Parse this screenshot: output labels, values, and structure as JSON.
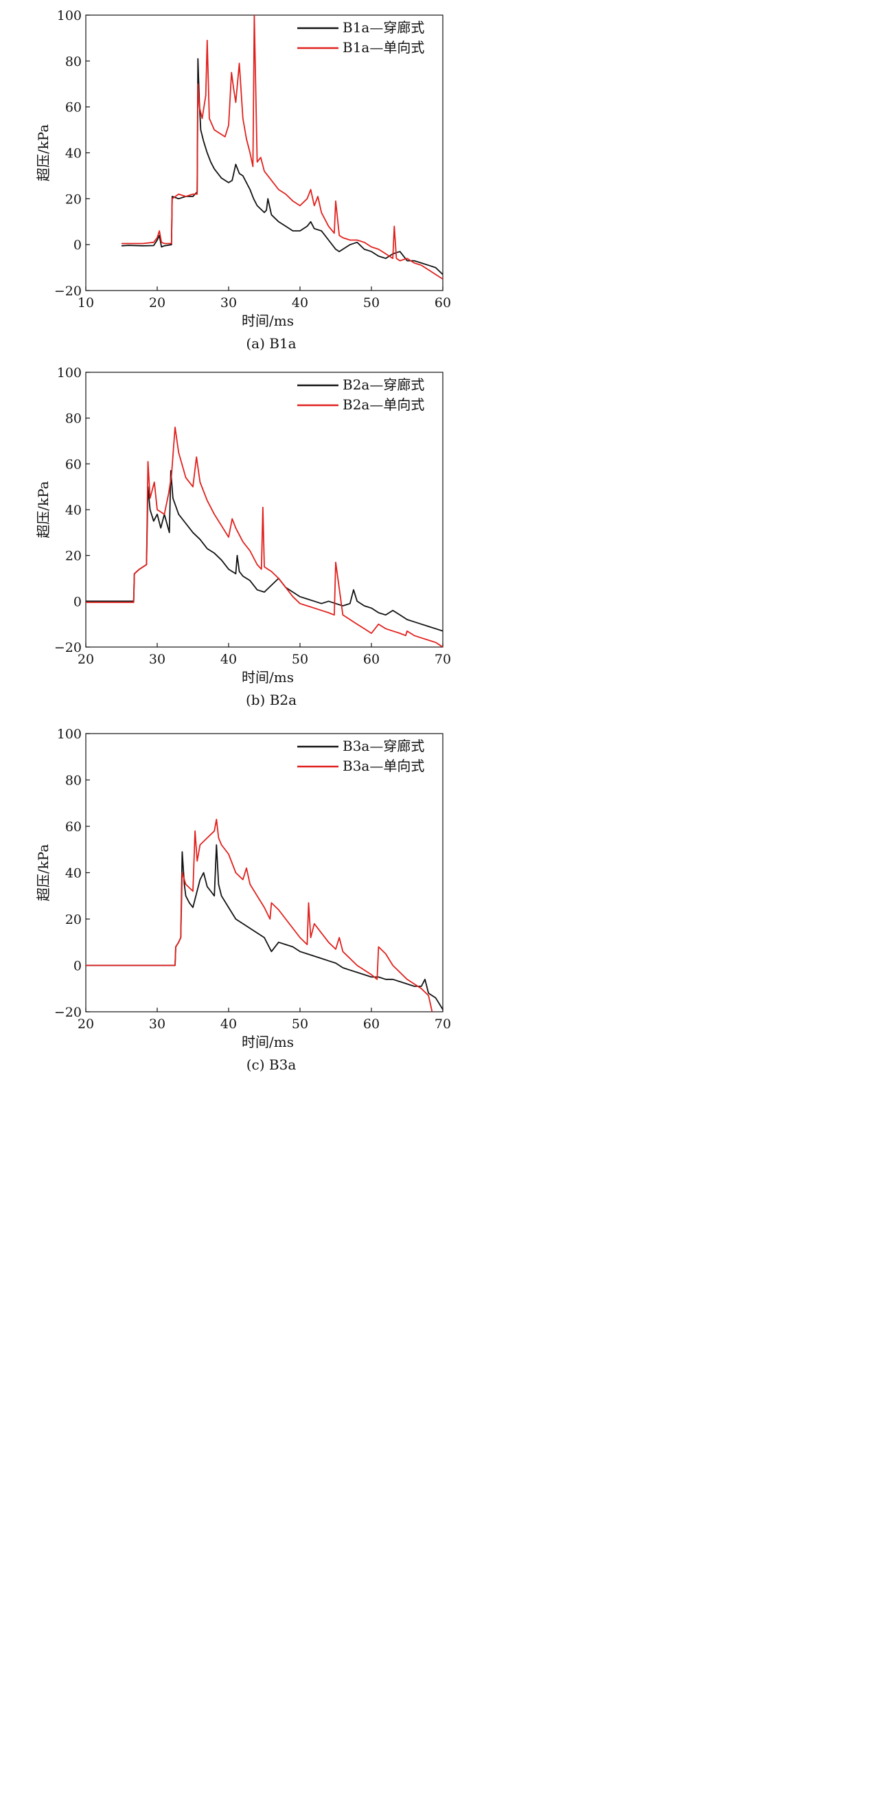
{
  "colors": {
    "series1": "#111111",
    "series2": "#e0201c"
  },
  "chart_data": [
    {
      "type": "line",
      "caption": "(a) B1a",
      "xlabel": "时间/ms",
      "ylabel": "超压/kPa",
      "xlim": [
        10,
        60
      ],
      "ylim": [
        -20,
        100
      ],
      "xticks": [
        "10",
        "20",
        "30",
        "40",
        "50",
        "60"
      ],
      "yticks": [
        "−20",
        "0",
        "20",
        "40",
        "60",
        "80",
        "100"
      ],
      "legend_position": "top-right",
      "series": [
        {
          "name": "B1a—穿廊式",
          "color": "#111111",
          "x": [
            15,
            16,
            18,
            19.5,
            20,
            20.3,
            20.6,
            21,
            22,
            22.1,
            23,
            24,
            25,
            25.6,
            25.7,
            25.9,
            26.1,
            26.5,
            27,
            27.5,
            28,
            29,
            30,
            30.5,
            31,
            31.5,
            32,
            33,
            33.5,
            34,
            35,
            35.3,
            35.5,
            36,
            37,
            38,
            39,
            40,
            41,
            41.5,
            42,
            43,
            44,
            45,
            45.5,
            46,
            47,
            48,
            49,
            50,
            51,
            52,
            53,
            54,
            55,
            56,
            57,
            58,
            59,
            60
          ],
          "y": [
            -0.5,
            -0.3,
            -0.5,
            -0.4,
            2,
            4,
            -1,
            -0.5,
            0,
            21,
            20,
            21,
            21,
            23,
            81,
            62,
            50,
            45,
            40,
            36,
            33,
            29,
            27,
            28,
            35,
            31,
            30,
            24,
            20,
            17,
            14,
            15,
            20,
            13,
            10,
            8,
            6,
            6,
            8,
            10,
            7,
            6,
            2,
            -2,
            -3,
            -2,
            0,
            1,
            -2,
            -3,
            -5,
            -6,
            -4,
            -3,
            -7,
            -7,
            -8,
            -9,
            -10,
            -13
          ]
        },
        {
          "name": "B1a—单向式",
          "color": "#e0201c",
          "x": [
            15,
            16,
            18,
            19.5,
            20,
            20.3,
            20.6,
            21,
            22,
            22.1,
            23,
            24,
            25,
            25.6,
            25.7,
            25.9,
            26.3,
            26.8,
            27,
            27.3,
            28,
            29,
            29.5,
            30,
            30.4,
            30.7,
            31,
            31.5,
            32,
            32.5,
            33,
            33.4,
            33.6,
            34,
            34.5,
            35,
            36,
            37,
            38,
            39,
            40,
            41,
            41.5,
            42,
            42.5,
            43,
            44,
            44.8,
            45,
            45.5,
            46,
            47,
            48,
            49,
            50,
            51,
            52,
            53,
            53.2,
            53.5,
            54,
            55,
            56,
            57,
            58,
            59,
            60
          ],
          "y": [
            0.5,
            0.5,
            0.5,
            1,
            3,
            6,
            1,
            0.5,
            0.5,
            20,
            22,
            21,
            22,
            22,
            70,
            60,
            55,
            65,
            89,
            55,
            50,
            48,
            47,
            52,
            75,
            68,
            62,
            79,
            55,
            46,
            40,
            34,
            100,
            36,
            38,
            32,
            28,
            24,
            22,
            19,
            17,
            20,
            24,
            17,
            21,
            14,
            8,
            5,
            19,
            4,
            3,
            2,
            2,
            1,
            -1,
            -2,
            -4,
            -6,
            8,
            -6,
            -7,
            -6,
            -8,
            -9,
            -11,
            -13,
            -15
          ]
        }
      ]
    },
    {
      "type": "line",
      "caption": "(b) B2a",
      "xlabel": "时间/ms",
      "ylabel": "超压/kPa",
      "xlim": [
        20,
        70
      ],
      "ylim": [
        -20,
        100
      ],
      "xticks": [
        "20",
        "30",
        "40",
        "50",
        "60",
        "70"
      ],
      "yticks": [
        "−20",
        "0",
        "20",
        "40",
        "60",
        "80",
        "100"
      ],
      "legend_position": "top-right",
      "series": [
        {
          "name": "B2a—穿廊式",
          "color": "#111111",
          "x": [
            20,
            22,
            24,
            26,
            26.7,
            26.8,
            27.5,
            28.5,
            28.7,
            29,
            29.5,
            30,
            30.5,
            31,
            31.7,
            31.9,
            32.2,
            33,
            34,
            35,
            36,
            37,
            38,
            39,
            40,
            41,
            41.2,
            41.5,
            42,
            43,
            44,
            45,
            46,
            47,
            48,
            49,
            50,
            51,
            52,
            53,
            54,
            55,
            56,
            57,
            57.5,
            58,
            59,
            60,
            61,
            62,
            63,
            64,
            65,
            66,
            67,
            68,
            69,
            70
          ],
          "y": [
            0,
            0,
            0,
            0,
            0,
            12,
            14,
            16,
            50,
            40,
            35,
            38,
            32,
            38,
            30,
            57,
            45,
            38,
            34,
            30,
            27,
            23,
            21,
            18,
            14,
            12,
            20,
            13,
            11,
            9,
            5,
            4,
            7,
            10,
            6,
            4,
            2,
            1,
            0,
            -1,
            0,
            -1,
            -2,
            -1,
            5,
            0,
            -2,
            -3,
            -5,
            -6,
            -4,
            -6,
            -8,
            -9,
            -10,
            -11,
            -12,
            -13
          ]
        },
        {
          "name": "B2a—单向式",
          "color": "#e0201c",
          "x": [
            20,
            22,
            24,
            26,
            26.7,
            26.8,
            27.5,
            28.5,
            28.7,
            29,
            29.6,
            30,
            31,
            31.6,
            32,
            32.5,
            33,
            34,
            35,
            35.5,
            36,
            37,
            38,
            39,
            40,
            40.5,
            41,
            42,
            43,
            44,
            44.6,
            44.8,
            45,
            46,
            47,
            48,
            49,
            50,
            51,
            52,
            53,
            54,
            54.8,
            55,
            56,
            57,
            58,
            59,
            60,
            61,
            62,
            63,
            64,
            64.8,
            65,
            66,
            67,
            68,
            69,
            70
          ],
          "y": [
            -0.5,
            -0.5,
            -0.5,
            -0.5,
            -0.5,
            12,
            14,
            16,
            61,
            45,
            52,
            40,
            38,
            47,
            55,
            76,
            65,
            54,
            50,
            63,
            52,
            44,
            38,
            33,
            28,
            36,
            32,
            26,
            22,
            16,
            14,
            41,
            15,
            13,
            10,
            6,
            2,
            -1,
            -2,
            -3,
            -4,
            -5,
            -6,
            17,
            -6,
            -8,
            -10,
            -12,
            -14,
            -10,
            -12,
            -13,
            -14,
            -15,
            -13,
            -15,
            -16,
            -17,
            -18,
            -20
          ]
        }
      ]
    },
    {
      "type": "line",
      "caption": "(c) B3a",
      "xlabel": "时间/ms",
      "ylabel": "超压/kPa",
      "xlim": [
        20,
        70
      ],
      "ylim": [
        -20,
        100
      ],
      "xticks": [
        "20",
        "30",
        "40",
        "50",
        "60",
        "70"
      ],
      "yticks": [
        "−20",
        "0",
        "20",
        "40",
        "60",
        "80",
        "100"
      ],
      "legend_position": "top-right",
      "series": [
        {
          "name": "B3a—穿廊式",
          "color": "#111111",
          "x": [
            20,
            24,
            28,
            32,
            32.5,
            32.6,
            33,
            33.3,
            33.5,
            33.8,
            34,
            34.5,
            35,
            36,
            36.5,
            37,
            37.5,
            38,
            38.3,
            38.6,
            39,
            40,
            41,
            42,
            43,
            44,
            45,
            46,
            47,
            48,
            49,
            50,
            51,
            52,
            53,
            54,
            55,
            56,
            57,
            58,
            59,
            60,
            61,
            62,
            63,
            64,
            65,
            66,
            67,
            67.5,
            68,
            69,
            70
          ],
          "y": [
            0,
            0,
            0,
            0,
            0,
            8,
            10,
            12,
            49,
            35,
            30,
            27,
            25,
            37,
            40,
            34,
            32,
            30,
            52,
            35,
            30,
            25,
            20,
            18,
            16,
            14,
            12,
            6,
            10,
            9,
            8,
            6,
            5,
            4,
            3,
            2,
            1,
            -1,
            -2,
            -3,
            -4,
            -5,
            -5,
            -6,
            -6,
            -7,
            -8,
            -9,
            -9,
            -6,
            -12,
            -14,
            -19
          ]
        },
        {
          "name": "B3a—单向式",
          "color": "#e0201c",
          "x": [
            20,
            24,
            28,
            32,
            32.5,
            32.6,
            33,
            33.3,
            33.5,
            34,
            35,
            35.3,
            35.6,
            36,
            37,
            38,
            38.3,
            38.6,
            39,
            40,
            41,
            42,
            42.5,
            43,
            44,
            45,
            45.8,
            46,
            47,
            48,
            49,
            50,
            51,
            51.2,
            51.5,
            52,
            53,
            54,
            55,
            55.5,
            56,
            57,
            58,
            59,
            60,
            60.8,
            61,
            62,
            63,
            64,
            65,
            66,
            67,
            68,
            68.5
          ],
          "y": [
            0,
            0,
            0,
            0,
            0,
            8,
            10,
            12,
            40,
            35,
            32,
            58,
            45,
            52,
            55,
            58,
            63,
            55,
            52,
            48,
            40,
            37,
            42,
            35,
            30,
            25,
            20,
            27,
            24,
            20,
            16,
            12,
            9,
            27,
            12,
            18,
            14,
            10,
            7,
            12,
            6,
            3,
            0,
            -2,
            -4,
            -6,
            8,
            5,
            0,
            -3,
            -6,
            -8,
            -10,
            -13,
            -20
          ]
        }
      ]
    }
  ]
}
